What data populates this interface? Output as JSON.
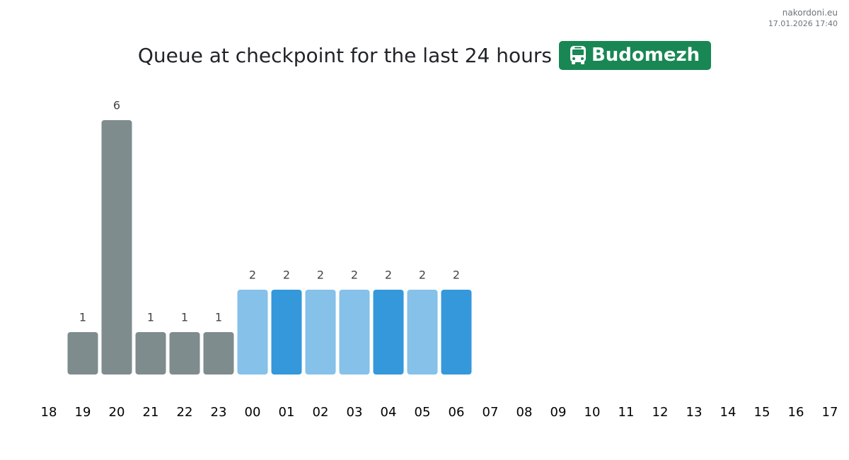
{
  "header": {
    "site": "nakordoni.eu",
    "timestamp": "17.01.2026 17:40"
  },
  "chart_data": {
    "type": "bar",
    "title": "Queue at checkpoint for the last 24 hours",
    "badge": "Budomezh",
    "categories": [
      "18",
      "19",
      "20",
      "21",
      "22",
      "23",
      "00",
      "01",
      "02",
      "03",
      "04",
      "05",
      "06",
      "07",
      "08",
      "09",
      "10",
      "11",
      "12",
      "13",
      "14",
      "15",
      "16",
      "17"
    ],
    "values": [
      null,
      1,
      6,
      1,
      1,
      1,
      2,
      2,
      2,
      2,
      2,
      2,
      2,
      null,
      null,
      null,
      null,
      null,
      null,
      null,
      null,
      null,
      null,
      null
    ],
    "colors": [
      null,
      "#7f8c8d",
      "#7f8c8d",
      "#7f8c8d",
      "#7f8c8d",
      "#7f8c8d",
      "#85c1e9",
      "#3498db",
      "#85c1e9",
      "#85c1e9",
      "#3498db",
      "#85c1e9",
      "#3498db",
      null,
      null,
      null,
      null,
      null,
      null,
      null,
      null,
      null,
      null,
      null
    ],
    "ylim": [
      0,
      6
    ]
  }
}
